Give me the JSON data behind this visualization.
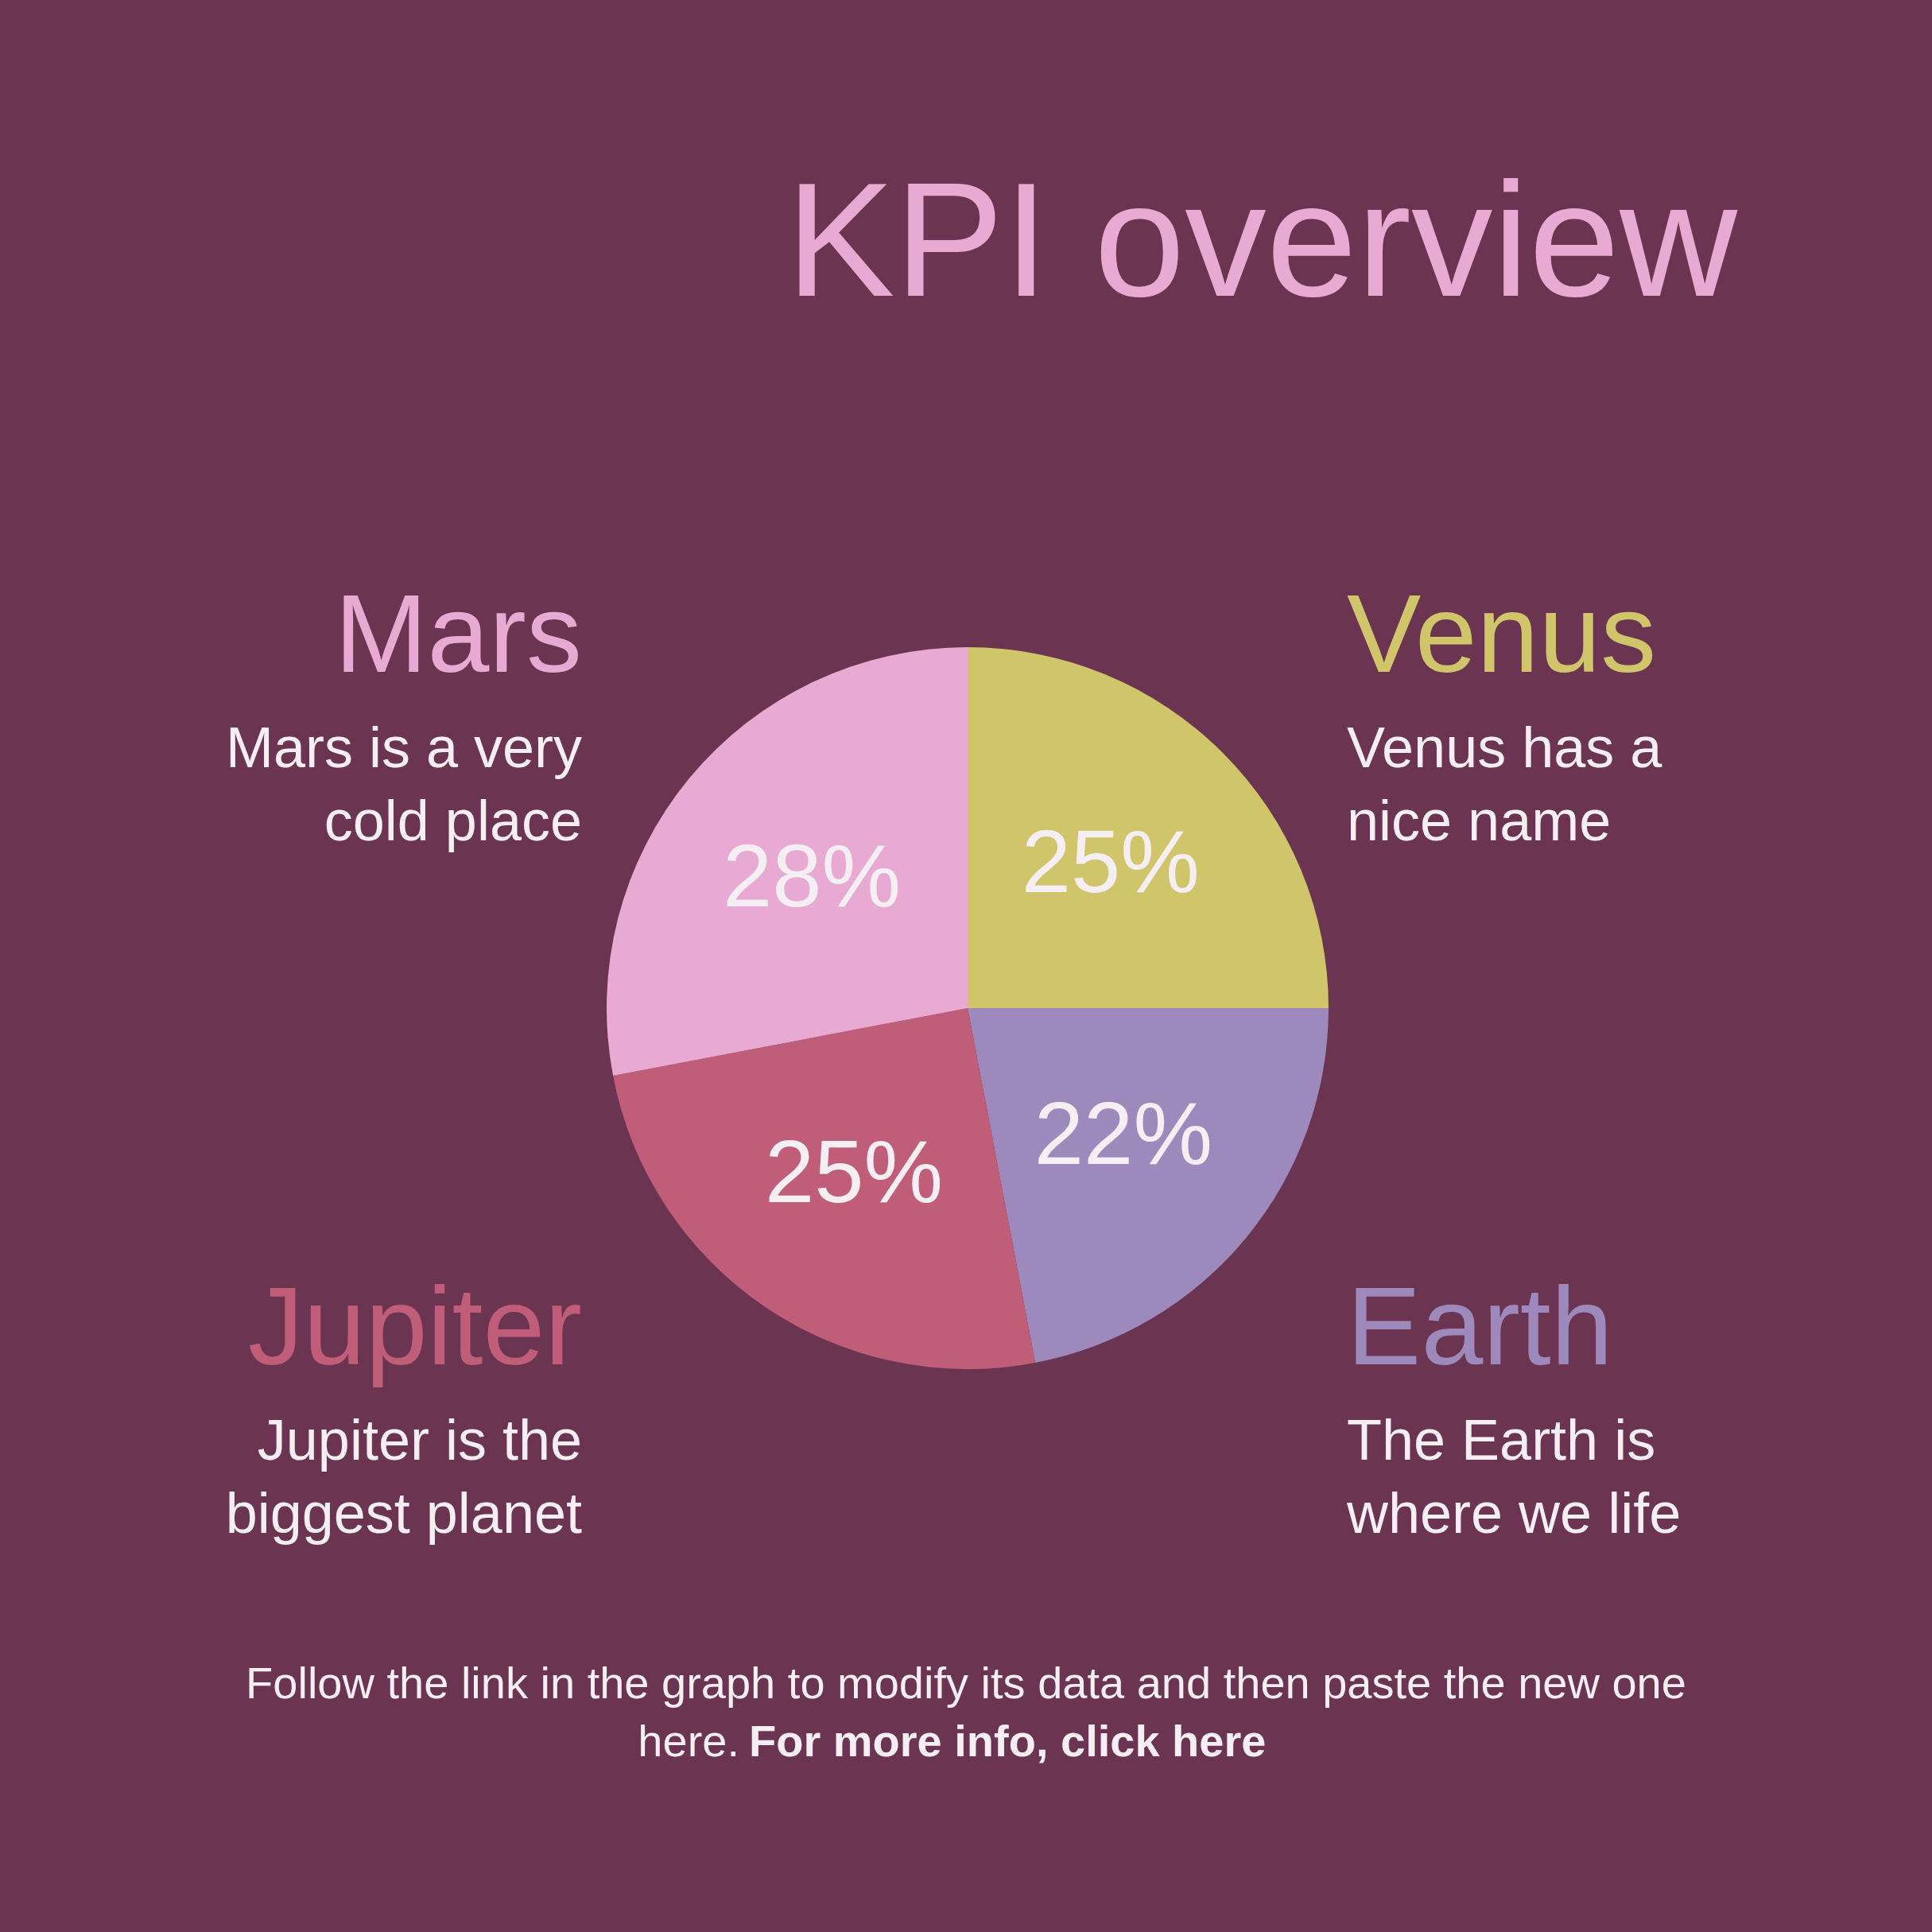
{
  "chart_data": {
    "type": "pie",
    "title": "KPI overview",
    "categories": [
      "Venus",
      "Earth",
      "Jupiter",
      "Mars"
    ],
    "values": [
      25,
      22,
      25,
      28
    ],
    "value_labels": [
      "25%",
      "22%",
      "25%",
      "28%"
    ],
    "colors": [
      "#d0c56b",
      "#9d89bb",
      "#c05d78",
      "#e8aad2"
    ],
    "annotations": [
      "Venus has a\nnice name",
      "The Earth is\nwhere we life",
      "Jupiter is the\nbiggest planet",
      "Mars is a very\ncold place",
      "Follow the link in the graph to modify its data and then paste the new one",
      "here.",
      "For more info, click here"
    ]
  }
}
